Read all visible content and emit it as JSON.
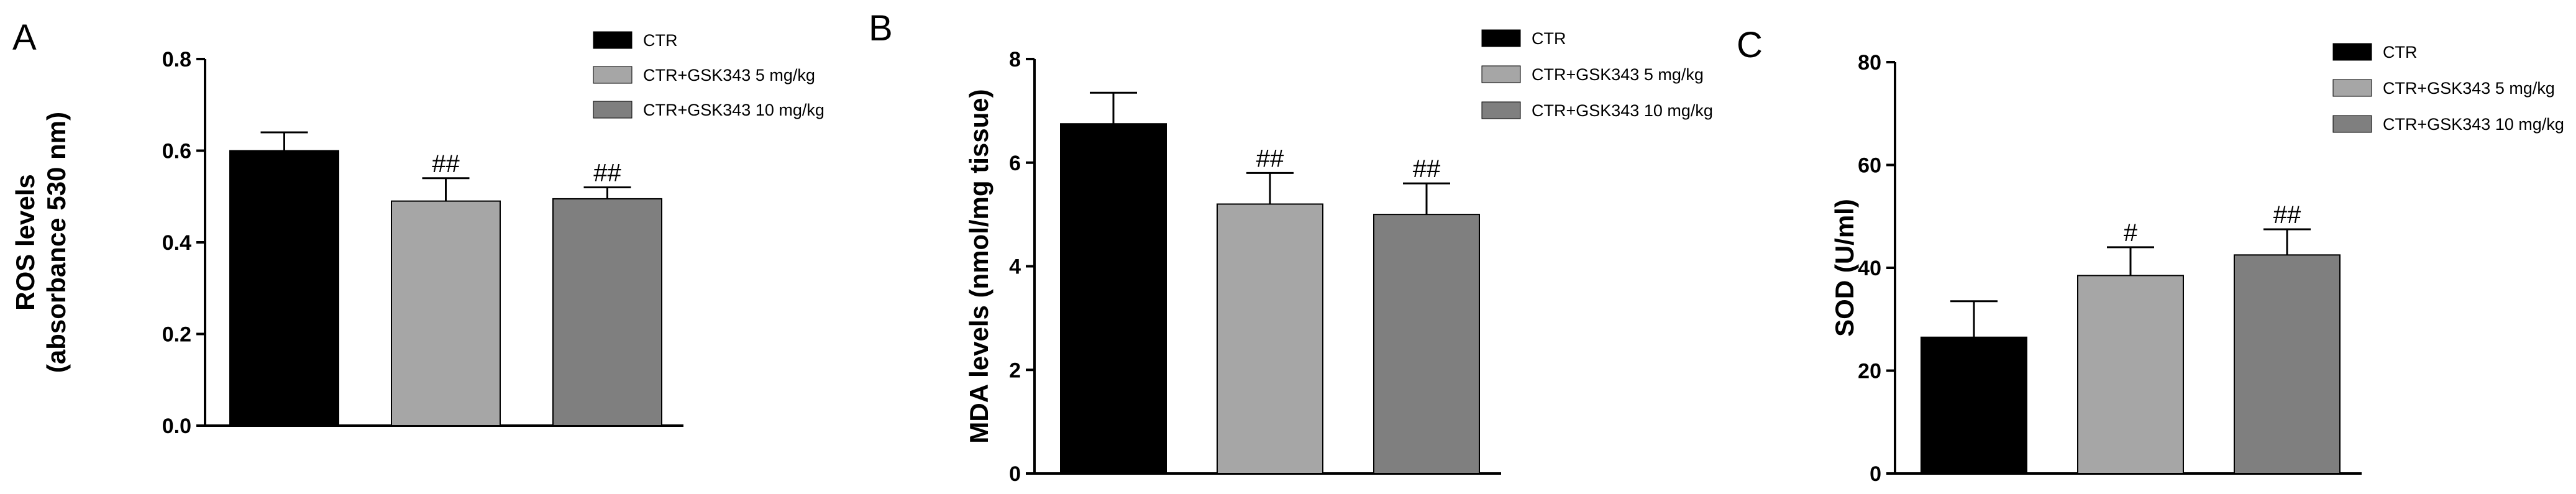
{
  "chart_data": [
    {
      "type": "bar",
      "panel_label": "A",
      "ylabel": [
        "ROS levels",
        "(absorbance 530 nm)"
      ],
      "ylim": [
        0,
        0.8
      ],
      "yticks": [
        "0.0",
        "0.2",
        "0.4",
        "0.6",
        "0.8"
      ],
      "ytick_values": [
        0,
        0.2,
        0.4,
        0.6,
        0.8
      ],
      "categories": [
        "CTR",
        "CTR+GSK343  5 mg/kg",
        "CTR+GSK343 10 mg/kg"
      ],
      "values": [
        0.6,
        0.49,
        0.495
      ],
      "errors": [
        0.04,
        0.05,
        0.025
      ],
      "significance": [
        "",
        "##",
        "##"
      ],
      "legend": {
        "position": "top-right",
        "entries": [
          "CTR",
          "CTR+GSK343  5 mg/kg",
          "CTR+GSK343 10 mg/kg"
        ]
      },
      "grid": false
    },
    {
      "type": "bar",
      "panel_label": "B",
      "ylabel": [
        "MDA levels (nmol/mg tissue)"
      ],
      "ylim": [
        0,
        8
      ],
      "yticks": [
        "0",
        "2",
        "4",
        "6",
        "8"
      ],
      "ytick_values": [
        0,
        2,
        4,
        6,
        8
      ],
      "categories": [
        "CTR",
        "CTR+GSK343  5 mg/kg",
        "CTR+GSK343 10 mg/kg"
      ],
      "values": [
        6.75,
        5.2,
        5.0
      ],
      "errors": [
        0.6,
        0.6,
        0.6
      ],
      "significance": [
        "",
        "##",
        "##"
      ],
      "legend": {
        "position": "top-right",
        "entries": [
          "CTR",
          "CTR+GSK343  5 mg/kg",
          "CTR+GSK343 10 mg/kg"
        ]
      },
      "grid": false
    },
    {
      "type": "bar",
      "panel_label": "C",
      "ylabel": [
        "SOD (U/ml)"
      ],
      "ylim": [
        0,
        80
      ],
      "yticks": [
        "0",
        "20",
        "40",
        "60",
        "80"
      ],
      "ytick_values": [
        0,
        20,
        40,
        60,
        80
      ],
      "categories": [
        "CTR",
        "CTR+GSK343  5 mg/kg",
        "CTR+GSK343 10 mg/kg"
      ],
      "values": [
        26.5,
        38.5,
        42.5
      ],
      "errors": [
        7,
        5.5,
        5
      ],
      "significance": [
        "",
        "#",
        "##"
      ],
      "legend": {
        "position": "top-right",
        "entries": [
          "CTR",
          "CTR+GSK343  5 mg/kg",
          "CTR+GSK343 10 mg/kg"
        ]
      },
      "grid": false
    }
  ],
  "colors": {
    "ctr": "#000000",
    "dose5": "#a6a6a6",
    "dose10": "#7f7f7f",
    "axis": "#000000"
  }
}
